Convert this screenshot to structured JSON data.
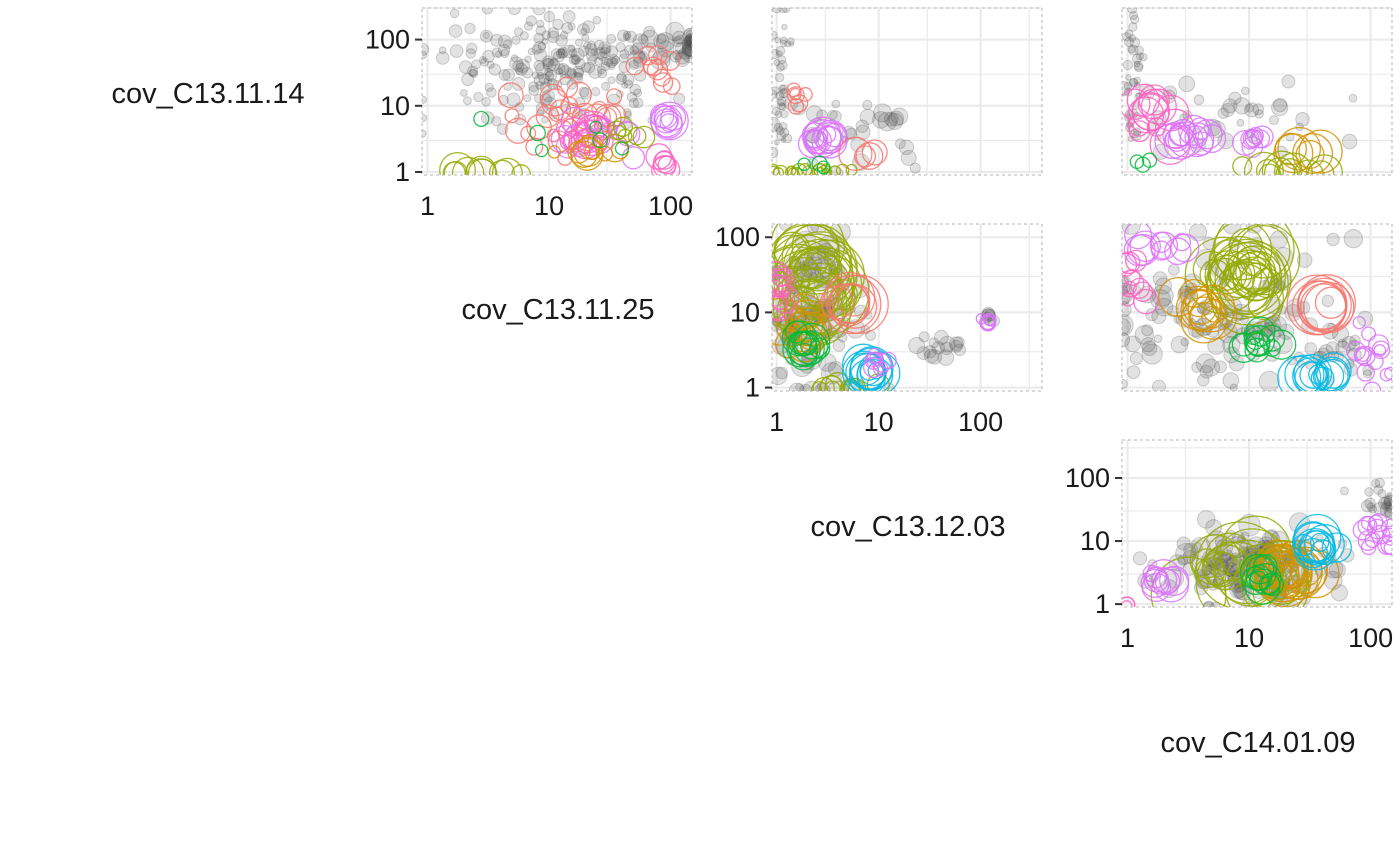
{
  "colors": {
    "background": "#ffffff",
    "grid": "#ebebeb",
    "gray_points": "#4d4d4d",
    "palette": [
      "#F8766D",
      "#D39200",
      "#93AA00",
      "#00BA38",
      "#00C19F",
      "#00B9E3",
      "#619CFF",
      "#DB72FB",
      "#FF61C3"
    ]
  },
  "chart_data": {
    "type": "scatter",
    "layout": "upper-triangle scatterplot matrix",
    "scale": "log10",
    "variables": [
      {
        "key": "v1",
        "label": "cov_C13.11.14",
        "lim": [
          0.9,
          300
        ]
      },
      {
        "key": "v2",
        "label": "cov_C13.11.25",
        "lim": [
          0.9,
          150
        ]
      },
      {
        "key": "v3",
        "label": "cov_C13.12.03",
        "lim": [
          0.9,
          400
        ]
      },
      {
        "key": "v4",
        "label": "cov_C14.01.09",
        "lim": [
          0.9,
          150
        ]
      }
    ],
    "ticks": {
      "values": [
        1,
        10,
        100
      ],
      "labels": [
        "1",
        "10",
        "100"
      ]
    },
    "grid": true,
    "legend": "none",
    "panels": [
      {
        "row": 0,
        "col": 1,
        "x": "v2",
        "y": "v1",
        "show_x_axis": true,
        "show_y_axis": true,
        "clusters": [
          {
            "group": "gray",
            "cx": 1.1,
            "cy": 1.6,
            "sx": 0.5,
            "sy": 0.4,
            "n": 220,
            "size": [
              5,
              11
            ]
          },
          {
            "group": "gray",
            "cx": 2.1,
            "cy": 1.9,
            "sx": 0.2,
            "sy": 0.12,
            "n": 40,
            "size": [
              6,
              16
            ]
          },
          {
            "group": 0,
            "cx": 1.2,
            "cy": 0.8,
            "sx": 0.25,
            "sy": 0.25,
            "n": 30,
            "size": [
              6,
              14
            ]
          },
          {
            "group": 0,
            "cx": 1.9,
            "cy": 1.55,
            "sx": 0.12,
            "sy": 0.12,
            "n": 10,
            "size": [
              6,
              12
            ]
          },
          {
            "group": 7,
            "cx": 1.95,
            "cy": 0.75,
            "sx": 0.05,
            "sy": 0.05,
            "n": 8,
            "size": [
              8,
              20
            ]
          },
          {
            "group": 7,
            "cx": 1.35,
            "cy": 0.55,
            "sx": 0.15,
            "sy": 0.15,
            "n": 12,
            "size": [
              6,
              16
            ]
          },
          {
            "group": 8,
            "cx": 1.35,
            "cy": 0.55,
            "sx": 0.12,
            "sy": 0.1,
            "n": 14,
            "size": [
              6,
              18
            ]
          },
          {
            "group": 8,
            "cx": 1.97,
            "cy": 0.15,
            "sx": 0.04,
            "sy": 0.05,
            "n": 6,
            "size": [
              8,
              16
            ]
          },
          {
            "group": 1,
            "cx": 1.3,
            "cy": 0.3,
            "sx": 0.15,
            "sy": 0.12,
            "n": 10,
            "size": [
              6,
              16
            ]
          },
          {
            "group": 2,
            "cx": 0.4,
            "cy": -0.02,
            "sx": 0.25,
            "sy": 0.02,
            "n": 10,
            "size": [
              8,
              22
            ]
          },
          {
            "group": 2,
            "cx": 1.6,
            "cy": 0.6,
            "sx": 0.15,
            "sy": 0.2,
            "n": 6,
            "size": [
              6,
              12
            ]
          },
          {
            "group": 3,
            "cx": 0.9,
            "cy": 0.4,
            "sx": 0.4,
            "sy": 0.3,
            "n": 6,
            "size": [
              5,
              8
            ]
          }
        ]
      },
      {
        "row": 0,
        "col": 2,
        "x": "v3",
        "y": "v1",
        "show_x_axis": false,
        "show_y_axis": false,
        "clusters": [
          {
            "group": "gray",
            "cx": 0.05,
            "cy": 1.4,
            "sx": 0.04,
            "sy": 0.6,
            "n": 40,
            "size": [
              4,
              8
            ]
          },
          {
            "group": "gray",
            "cx": 0.6,
            "cy": 0.6,
            "sx": 0.4,
            "sy": 0.35,
            "n": 30,
            "size": [
              5,
              14
            ]
          },
          {
            "group": "gray",
            "cx": 1.1,
            "cy": 0.85,
            "sx": 0.1,
            "sy": 0.08,
            "n": 6,
            "size": [
              12,
              18
            ]
          },
          {
            "group": 7,
            "cx": 0.45,
            "cy": 0.5,
            "sx": 0.08,
            "sy": 0.05,
            "n": 14,
            "size": [
              8,
              20
            ]
          },
          {
            "group": 0,
            "cx": 0.2,
            "cy": 1.1,
            "sx": 0.05,
            "sy": 0.06,
            "n": 6,
            "size": [
              5,
              9
            ]
          },
          {
            "group": 0,
            "cx": 0.9,
            "cy": 0.3,
            "sx": 0.08,
            "sy": 0.05,
            "n": 4,
            "size": [
              10,
              18
            ]
          },
          {
            "group": 2,
            "cx": 0.3,
            "cy": 0.0,
            "sx": 0.3,
            "sy": 0.02,
            "n": 20,
            "size": [
              4,
              8
            ]
          },
          {
            "group": 3,
            "cx": 0.4,
            "cy": 0.15,
            "sx": 0.06,
            "sy": 0.04,
            "n": 3,
            "size": [
              6,
              8
            ]
          }
        ]
      },
      {
        "row": 0,
        "col": 3,
        "x": "v4",
        "y": "v1",
        "show_x_axis": false,
        "show_y_axis": false,
        "clusters": [
          {
            "group": "gray",
            "cx": 0.05,
            "cy": 1.4,
            "sx": 0.04,
            "sy": 0.6,
            "n": 40,
            "size": [
              4,
              8
            ]
          },
          {
            "group": "gray",
            "cx": 0.8,
            "cy": 0.8,
            "sx": 0.45,
            "sy": 0.3,
            "n": 40,
            "size": [
              5,
              14
            ]
          },
          {
            "group": 8,
            "cx": 0.2,
            "cy": 0.8,
            "sx": 0.12,
            "sy": 0.15,
            "n": 14,
            "size": [
              8,
              20
            ]
          },
          {
            "group": 7,
            "cx": 0.45,
            "cy": 0.5,
            "sx": 0.1,
            "sy": 0.07,
            "n": 14,
            "size": [
              8,
              18
            ]
          },
          {
            "group": 7,
            "cx": 1.05,
            "cy": 0.5,
            "sx": 0.05,
            "sy": 0.05,
            "n": 8,
            "size": [
              8,
              14
            ]
          },
          {
            "group": 1,
            "cx": 1.5,
            "cy": 0.3,
            "sx": 0.1,
            "sy": 0.05,
            "n": 6,
            "size": [
              12,
              22
            ]
          },
          {
            "group": 2,
            "cx": 1.3,
            "cy": 0.0,
            "sx": 0.15,
            "sy": 0.03,
            "n": 12,
            "size": [
              8,
              20
            ]
          },
          {
            "group": 3,
            "cx": 0.15,
            "cy": 0.15,
            "sx": 0.05,
            "sy": 0.04,
            "n": 3,
            "size": [
              6,
              8
            ]
          }
        ]
      },
      {
        "row": 1,
        "col": 2,
        "x": "v3",
        "y": "v2",
        "show_x_axis": true,
        "show_y_axis": true,
        "clusters": [
          {
            "group": "gray",
            "cx": 0.35,
            "cy": 1.0,
            "sx": 0.25,
            "sy": 0.55,
            "n": 120,
            "size": [
              6,
              18
            ]
          },
          {
            "group": "gray",
            "cx": 1.6,
            "cy": 0.5,
            "sx": 0.1,
            "sy": 0.08,
            "n": 16,
            "size": [
              8,
              14
            ]
          },
          {
            "group": "gray",
            "cx": 2.08,
            "cy": 0.92,
            "sx": 0.03,
            "sy": 0.04,
            "n": 6,
            "size": [
              8,
              12
            ]
          },
          {
            "group": 2,
            "cx": 0.35,
            "cy": 1.5,
            "sx": 0.12,
            "sy": 0.25,
            "n": 34,
            "size": [
              14,
              44
            ]
          },
          {
            "group": 2,
            "cx": 0.6,
            "cy": 0.0,
            "sx": 0.2,
            "sy": 0.03,
            "n": 12,
            "size": [
              6,
              12
            ]
          },
          {
            "group": 0,
            "cx": 0.72,
            "cy": 1.1,
            "sx": 0.03,
            "sy": 0.04,
            "n": 8,
            "size": [
              12,
              30
            ]
          },
          {
            "group": 1,
            "cx": 0.2,
            "cy": 0.8,
            "sx": 0.1,
            "sy": 0.12,
            "n": 12,
            "size": [
              10,
              24
            ]
          },
          {
            "group": 3,
            "cx": 0.3,
            "cy": 0.55,
            "sx": 0.06,
            "sy": 0.08,
            "n": 12,
            "size": [
              8,
              18
            ]
          },
          {
            "group": 5,
            "cx": 0.92,
            "cy": 0.2,
            "sx": 0.05,
            "sy": 0.05,
            "n": 12,
            "size": [
              8,
              22
            ]
          },
          {
            "group": 7,
            "cx": 2.06,
            "cy": 0.9,
            "sx": 0.03,
            "sy": 0.03,
            "n": 6,
            "size": [
              5,
              8
            ]
          },
          {
            "group": 7,
            "cx": 1.0,
            "cy": 0.3,
            "sx": 0.05,
            "sy": 0.05,
            "n": 8,
            "size": [
              6,
              10
            ]
          },
          {
            "group": 8,
            "cx": 0.02,
            "cy": 1.4,
            "sx": 0.03,
            "sy": 0.15,
            "n": 12,
            "size": [
              6,
              16
            ]
          }
        ]
      },
      {
        "row": 1,
        "col": 3,
        "x": "v4",
        "y": "v2",
        "show_x_axis": false,
        "show_y_axis": false,
        "clusters": [
          {
            "group": "gray",
            "cx": 0.8,
            "cy": 0.9,
            "sx": 0.5,
            "sy": 0.5,
            "n": 130,
            "size": [
              6,
              18
            ]
          },
          {
            "group": "gray",
            "cx": 1.7,
            "cy": 0.4,
            "sx": 0.15,
            "sy": 0.15,
            "n": 20,
            "size": [
              6,
              12
            ]
          },
          {
            "group": 2,
            "cx": 0.95,
            "cy": 1.45,
            "sx": 0.15,
            "sy": 0.3,
            "n": 30,
            "size": [
              14,
              44
            ]
          },
          {
            "group": 0,
            "cx": 1.62,
            "cy": 1.1,
            "sx": 0.03,
            "sy": 0.04,
            "n": 8,
            "size": [
              12,
              30
            ]
          },
          {
            "group": 1,
            "cx": 0.6,
            "cy": 1.05,
            "sx": 0.1,
            "sy": 0.08,
            "n": 12,
            "size": [
              10,
              24
            ]
          },
          {
            "group": 3,
            "cx": 1.1,
            "cy": 0.6,
            "sx": 0.1,
            "sy": 0.08,
            "n": 12,
            "size": [
              8,
              18
            ]
          },
          {
            "group": 5,
            "cx": 1.55,
            "cy": 0.15,
            "sx": 0.08,
            "sy": 0.06,
            "n": 12,
            "size": [
              8,
              22
            ]
          },
          {
            "group": 7,
            "cx": 0.3,
            "cy": 1.9,
            "sx": 0.1,
            "sy": 0.08,
            "n": 10,
            "size": [
              8,
              20
            ]
          },
          {
            "group": 7,
            "cx": 2.02,
            "cy": 0.4,
            "sx": 0.08,
            "sy": 0.25,
            "n": 14,
            "size": [
              5,
              10
            ]
          },
          {
            "group": 8,
            "cx": 0.05,
            "cy": 1.5,
            "sx": 0.04,
            "sy": 0.2,
            "n": 10,
            "size": [
              6,
              14
            ]
          }
        ]
      },
      {
        "row": 2,
        "col": 3,
        "x": "v4",
        "y": "v3",
        "show_x_axis": true,
        "show_y_axis": true,
        "clusters": [
          {
            "group": "gray",
            "cx": 1.0,
            "cy": 0.6,
            "sx": 0.4,
            "sy": 0.3,
            "n": 140,
            "size": [
              6,
              18
            ]
          },
          {
            "group": "gray",
            "cx": 2.1,
            "cy": 1.7,
            "sx": 0.15,
            "sy": 0.15,
            "n": 22,
            "size": [
              6,
              12
            ]
          },
          {
            "group": 2,
            "cx": 1.0,
            "cy": 0.5,
            "sx": 0.2,
            "sy": 0.15,
            "n": 26,
            "size": [
              14,
              46
            ]
          },
          {
            "group": 1,
            "cx": 1.3,
            "cy": 0.5,
            "sx": 0.12,
            "sy": 0.12,
            "n": 20,
            "size": [
              10,
              30
            ]
          },
          {
            "group": 3,
            "cx": 1.1,
            "cy": 0.4,
            "sx": 0.06,
            "sy": 0.06,
            "n": 10,
            "size": [
              8,
              18
            ]
          },
          {
            "group": 5,
            "cx": 1.55,
            "cy": 0.9,
            "sx": 0.06,
            "sy": 0.06,
            "n": 12,
            "size": [
              8,
              24
            ]
          },
          {
            "group": 7,
            "cx": 0.25,
            "cy": 0.4,
            "sx": 0.06,
            "sy": 0.06,
            "n": 10,
            "size": [
              8,
              18
            ]
          },
          {
            "group": 7,
            "cx": 2.1,
            "cy": 1.1,
            "sx": 0.12,
            "sy": 0.15,
            "n": 16,
            "size": [
              5,
              10
            ]
          },
          {
            "group": 8,
            "cx": 0.0,
            "cy": 0.0,
            "sx": 0.02,
            "sy": 0.02,
            "n": 3,
            "size": [
              5,
              8
            ]
          }
        ]
      }
    ]
  }
}
